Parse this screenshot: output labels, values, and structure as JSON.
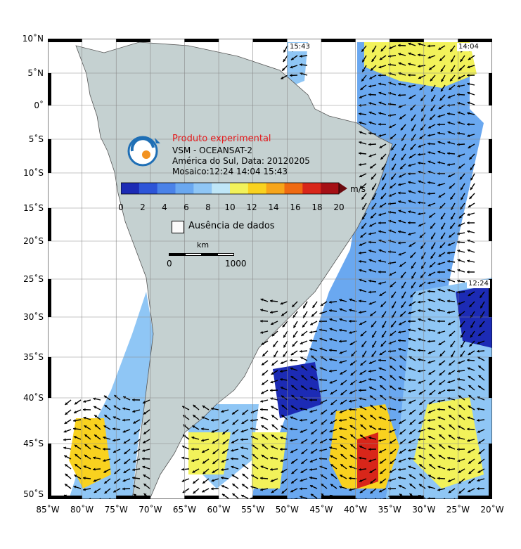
{
  "legend": {
    "product_label": "Produto experimental",
    "line1": "VSM - OCEANSAT-2",
    "line2": "América do Sul, Data: 20120205",
    "line3": "Mosaico:12:24 14:04 15:43",
    "unit": "m/s",
    "ticks": [
      "0",
      "2",
      "4",
      "6",
      "8",
      "10",
      "12",
      "14",
      "16",
      "18",
      "20"
    ],
    "colors": [
      "#1c2bb5",
      "#2d55d8",
      "#4a82e8",
      "#6aa8f0",
      "#8fc6f5",
      "#bfe6f7",
      "#f2f25a",
      "#f9d21f",
      "#f7a51a",
      "#ef6a12",
      "#d8261a",
      "#a50f15",
      "#6b0a0f"
    ],
    "nodata_label": "Ausência de dados",
    "scale_unit": "km",
    "scale_start": "0",
    "scale_end": "1000"
  },
  "axes": {
    "lat_labels": [
      "10˚N",
      "5˚N",
      "0˚",
      "5˚S",
      "10˚S",
      "15˚S",
      "20˚S",
      "25˚S",
      "30˚S",
      "35˚S",
      "40˚S",
      "45˚S",
      "50˚S"
    ],
    "lon_labels": [
      "85˚W",
      "80˚W",
      "75˚W",
      "70˚W",
      "65˚W",
      "60˚W",
      "55˚W",
      "50˚W",
      "45˚W",
      "40˚W",
      "35˚W",
      "30˚W",
      "25˚W",
      "20˚W"
    ]
  },
  "passes": {
    "p1": "15:43",
    "p2": "14:04",
    "p3": "12:24"
  },
  "palette": {
    "land": "#c5d1d1",
    "grid": "#8a8a8a",
    "arrow": "#000000"
  }
}
